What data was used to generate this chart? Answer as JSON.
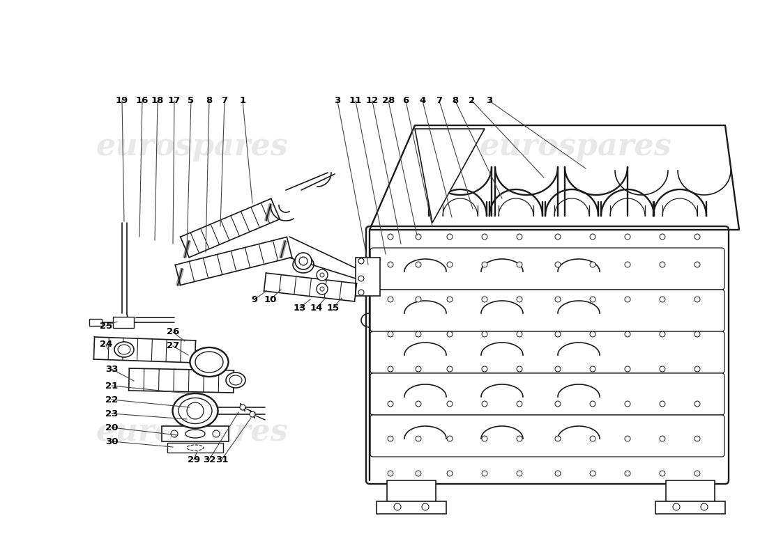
{
  "bg_color": "#ffffff",
  "line_color": "#1a1a1a",
  "label_color": "#000000",
  "watermark_text": "eurospares",
  "watermark_color": "#cccccc",
  "label_fontsize": 9.5,
  "figsize": [
    11.0,
    8.0
  ],
  "dpi": 100
}
